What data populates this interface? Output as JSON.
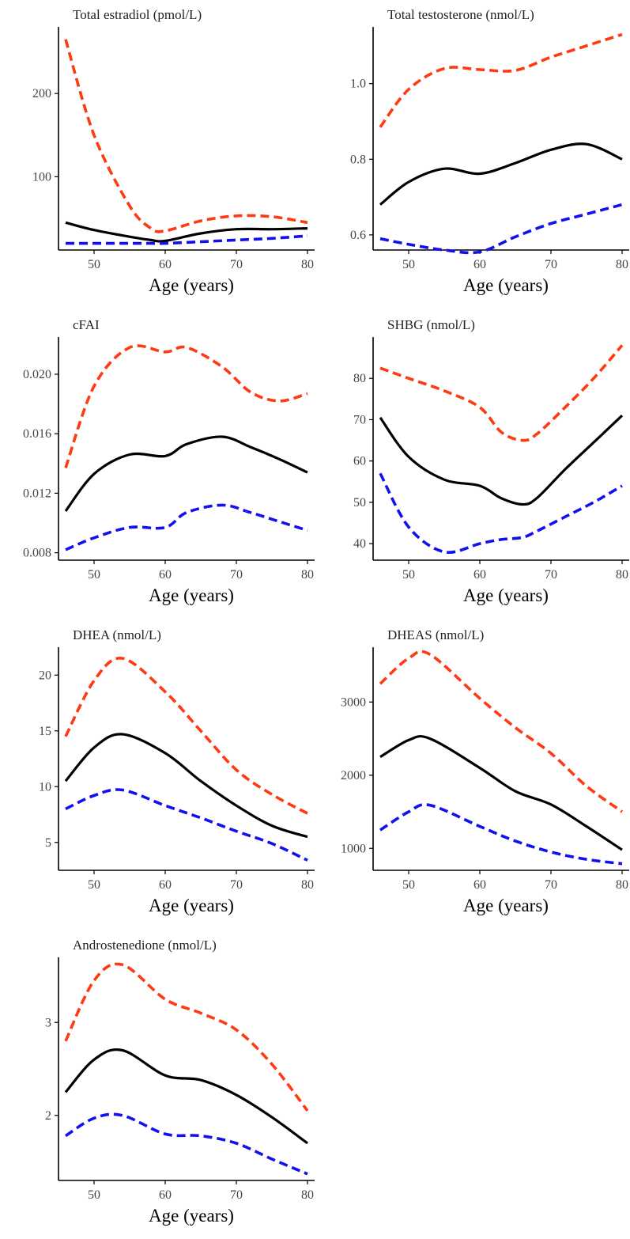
{
  "colors": {
    "median": "#000000",
    "upper": "#ff3a12",
    "lower": "#1111ee"
  },
  "chart_data": [
    {
      "type": "line",
      "title": "Total estradiol (pmol/L)",
      "xlabel": "Age (years)",
      "xlim": [
        45,
        81
      ],
      "ylim": [
        12,
        280
      ],
      "xticks": [
        50,
        60,
        70,
        80
      ],
      "xtick_labels": [
        "50",
        "60",
        "70",
        "80"
      ],
      "yticks": [
        100,
        200
      ],
      "ytick_labels": [
        "100",
        "200"
      ],
      "x": [
        46,
        50,
        55,
        58,
        60,
        65,
        70,
        75,
        80
      ],
      "series": [
        {
          "role": "upper",
          "style": "dashed",
          "values": [
            265,
            150,
            65,
            38,
            35,
            47,
            53,
            52,
            45
          ]
        },
        {
          "role": "median",
          "style": "solid",
          "values": [
            45,
            36,
            28,
            24,
            23,
            32,
            37,
            37,
            38
          ]
        },
        {
          "role": "lower",
          "style": "dashed",
          "values": [
            20,
            20,
            20,
            20,
            20,
            22,
            24,
            26,
            29
          ]
        }
      ]
    },
    {
      "type": "line",
      "title": "Total testosterone (nmol/L)",
      "xlabel": "Age (years)",
      "xlim": [
        45,
        81
      ],
      "ylim": [
        0.56,
        1.15
      ],
      "xticks": [
        50,
        60,
        70,
        80
      ],
      "xtick_labels": [
        "50",
        "60",
        "70",
        "80"
      ],
      "yticks": [
        0.6,
        0.8,
        1.0
      ],
      "ytick_labels": [
        "0.6",
        "0.8",
        "1.0"
      ],
      "x": [
        46,
        50,
        55,
        60,
        65,
        70,
        75,
        80
      ],
      "series": [
        {
          "role": "upper",
          "style": "dashed",
          "values": [
            0.885,
            0.985,
            1.04,
            1.037,
            1.035,
            1.07,
            1.1,
            1.13
          ]
        },
        {
          "role": "median",
          "style": "solid",
          "values": [
            0.68,
            0.74,
            0.775,
            0.762,
            0.79,
            0.825,
            0.84,
            0.8
          ]
        },
        {
          "role": "lower",
          "style": "dashed",
          "values": [
            0.59,
            0.575,
            0.56,
            0.555,
            0.595,
            0.63,
            0.655,
            0.68
          ]
        }
      ]
    },
    {
      "type": "line",
      "title": "cFAI",
      "xlabel": "Age (years)",
      "xlim": [
        45,
        81
      ],
      "ylim": [
        0.0075,
        0.0225
      ],
      "xticks": [
        50,
        60,
        70,
        80
      ],
      "xtick_labels": [
        "50",
        "60",
        "70",
        "80"
      ],
      "yticks": [
        0.008,
        0.012,
        0.016,
        0.02
      ],
      "ytick_labels": [
        "0.008",
        "0.012",
        "0.016",
        "0.020"
      ],
      "x": [
        46,
        50,
        55,
        60,
        63,
        68,
        72,
        76,
        80
      ],
      "series": [
        {
          "role": "upper",
          "style": "dashed",
          "values": [
            0.0137,
            0.0192,
            0.0218,
            0.0215,
            0.0218,
            0.0205,
            0.0188,
            0.0182,
            0.0187
          ]
        },
        {
          "role": "median",
          "style": "solid",
          "values": [
            0.0108,
            0.0133,
            0.0146,
            0.0145,
            0.0153,
            0.0158,
            0.0151,
            0.0143,
            0.0134
          ]
        },
        {
          "role": "lower",
          "style": "dashed",
          "values": [
            0.0082,
            0.009,
            0.0097,
            0.0097,
            0.0107,
            0.0112,
            0.0107,
            0.0101,
            0.0095
          ]
        }
      ]
    },
    {
      "type": "line",
      "title": "SHBG (nmol/L)",
      "xlabel": "Age (years)",
      "xlim": [
        45,
        81
      ],
      "ylim": [
        36,
        90
      ],
      "xticks": [
        50,
        60,
        70,
        80
      ],
      "xtick_labels": [
        "50",
        "60",
        "70",
        "80"
      ],
      "yticks": [
        40,
        50,
        60,
        70,
        80
      ],
      "ytick_labels": [
        "40",
        "50",
        "60",
        "70",
        "80"
      ],
      "x": [
        46,
        50,
        55,
        60,
        63,
        66,
        68,
        72,
        76,
        80
      ],
      "series": [
        {
          "role": "upper",
          "style": "dashed",
          "values": [
            82.5,
            80,
            77,
            73,
            67,
            65,
            66.5,
            73,
            80,
            88
          ]
        },
        {
          "role": "median",
          "style": "solid",
          "values": [
            70.5,
            61,
            55.5,
            54,
            51,
            49.5,
            51,
            58,
            64.5,
            71
          ]
        },
        {
          "role": "lower",
          "style": "dashed",
          "values": [
            57,
            44,
            38,
            40,
            41,
            41.5,
            43,
            46.5,
            50,
            54
          ]
        }
      ]
    },
    {
      "type": "line",
      "title": "DHEA (nmol/L)",
      "xlabel": "Age (years)",
      "xlim": [
        45,
        81
      ],
      "ylim": [
        2.5,
        22.5
      ],
      "xticks": [
        50,
        60,
        70,
        80
      ],
      "xtick_labels": [
        "50",
        "60",
        "70",
        "80"
      ],
      "yticks": [
        5,
        10,
        15,
        20
      ],
      "ytick_labels": [
        "5",
        "10",
        "15",
        "20"
      ],
      "x": [
        46,
        50,
        54,
        60,
        65,
        70,
        75,
        80
      ],
      "series": [
        {
          "role": "upper",
          "style": "dashed",
          "values": [
            14.5,
            19.5,
            21.5,
            18.5,
            15,
            11.5,
            9.3,
            7.6
          ]
        },
        {
          "role": "median",
          "style": "solid",
          "values": [
            10.5,
            13.5,
            14.7,
            13,
            10.5,
            8.3,
            6.5,
            5.5
          ]
        },
        {
          "role": "lower",
          "style": "dashed",
          "values": [
            8,
            9.2,
            9.7,
            8.3,
            7.2,
            6,
            4.9,
            3.4
          ]
        }
      ]
    },
    {
      "type": "line",
      "title": "DHEAS (nmol/L)",
      "xlabel": "Age (years)",
      "xlim": [
        45,
        81
      ],
      "ylim": [
        700,
        3750
      ],
      "xticks": [
        50,
        60,
        70,
        80
      ],
      "xtick_labels": [
        "50",
        "60",
        "70",
        "80"
      ],
      "yticks": [
        1000,
        2000,
        3000
      ],
      "ytick_labels": [
        "1000",
        "2000",
        "3000"
      ],
      "x": [
        46,
        50,
        53,
        60,
        65,
        70,
        75,
        80
      ],
      "series": [
        {
          "role": "upper",
          "style": "dashed",
          "values": [
            3250,
            3600,
            3650,
            3050,
            2650,
            2300,
            1850,
            1500
          ]
        },
        {
          "role": "median",
          "style": "solid",
          "values": [
            2250,
            2480,
            2500,
            2100,
            1780,
            1600,
            1300,
            980
          ]
        },
        {
          "role": "lower",
          "style": "dashed",
          "values": [
            1250,
            1500,
            1590,
            1300,
            1100,
            950,
            850,
            790
          ]
        }
      ]
    },
    {
      "type": "line",
      "title": "Androstenedione (nmol/L)",
      "xlabel": "Age (years)",
      "xlim": [
        45,
        81
      ],
      "ylim": [
        1.3,
        3.7
      ],
      "xticks": [
        50,
        60,
        70,
        80
      ],
      "xtick_labels": [
        "50",
        "60",
        "70",
        "80"
      ],
      "yticks": [
        2,
        3
      ],
      "ytick_labels": [
        "2",
        "3"
      ],
      "x": [
        46,
        50,
        54,
        60,
        65,
        70,
        75,
        80
      ],
      "series": [
        {
          "role": "upper",
          "style": "dashed",
          "values": [
            2.8,
            3.45,
            3.62,
            3.25,
            3.1,
            2.92,
            2.55,
            2.05
          ]
        },
        {
          "role": "median",
          "style": "solid",
          "values": [
            2.25,
            2.6,
            2.7,
            2.43,
            2.38,
            2.22,
            1.98,
            1.7
          ]
        },
        {
          "role": "lower",
          "style": "dashed",
          "values": [
            1.78,
            1.97,
            2.0,
            1.8,
            1.78,
            1.7,
            1.53,
            1.37
          ]
        }
      ]
    }
  ]
}
